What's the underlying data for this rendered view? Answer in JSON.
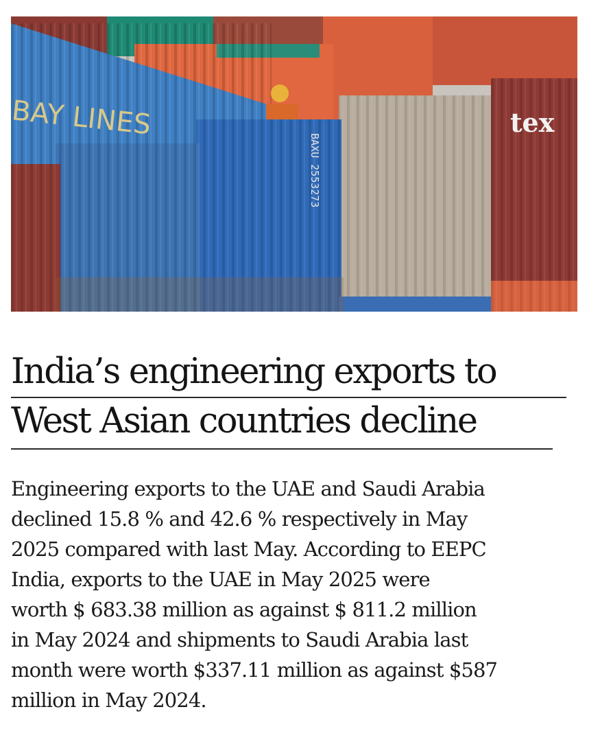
{
  "image": {
    "alt": "",
    "container_marking": "tex",
    "serial_marking": "BAXU 2553273"
  },
  "article": {
    "headline_lines": [
      "India’s engineering exports to",
      "West Asian countries decline"
    ],
    "body_lines": [
      "Engineering exports to the UAE and Saudi Arabia",
      "declined 15.8 % and 42.6 % respectively in May",
      "2025 compared with last May. According to EEPC",
      "India, exports to the UAE in May 2025 were",
      "worth $ 683.38 million as against $ 811.2 million",
      "in May 2024 and shipments to Saudi Arabia last",
      "month were worth $337.11 million as against $587",
      "million in May 2024."
    ]
  }
}
